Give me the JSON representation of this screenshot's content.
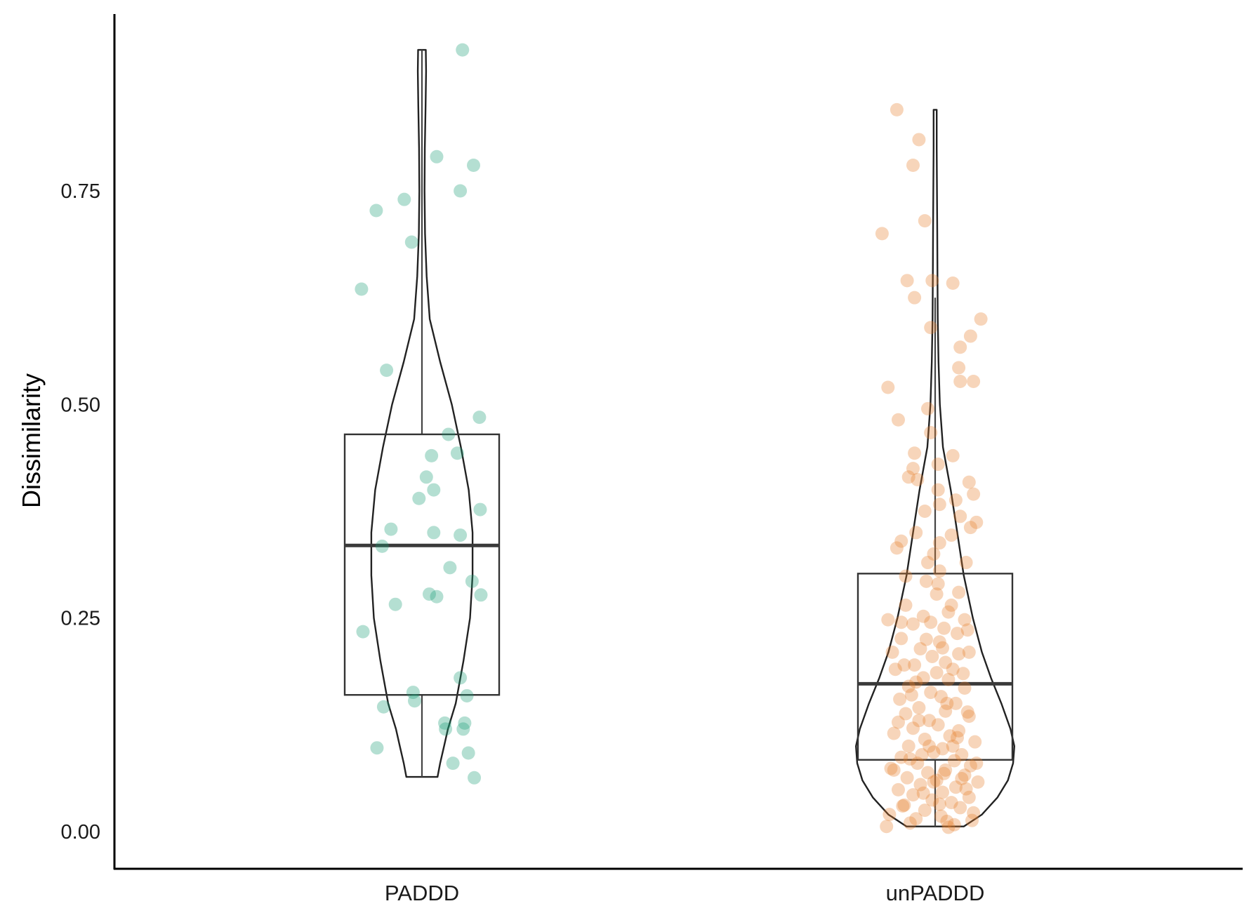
{
  "chart_data": {
    "type": "violin-box-jitter",
    "title": "",
    "xlabel": "",
    "ylabel": "Dissimilarity",
    "ylim": [
      -0.04,
      0.98
    ],
    "yticks": [
      0.0,
      0.25,
      0.5,
      0.75
    ],
    "ytick_labels": [
      "0.00",
      "0.25",
      "0.50",
      "0.75"
    ],
    "grid": false,
    "legend": "none",
    "categories": [
      "PADDD",
      "unPADDD"
    ],
    "groups": [
      {
        "name": "PADDD",
        "color": "#1b9e77",
        "box": {
          "min": 0.064,
          "q1": 0.16,
          "median": 0.335,
          "q3": 0.465,
          "max": 0.915
        },
        "violin": [
          [
            0.064,
            0.06
          ],
          [
            0.08,
            0.07
          ],
          [
            0.1,
            0.085
          ],
          [
            0.12,
            0.1
          ],
          [
            0.15,
            0.13
          ],
          [
            0.2,
            0.16
          ],
          [
            0.25,
            0.185
          ],
          [
            0.3,
            0.195
          ],
          [
            0.35,
            0.195
          ],
          [
            0.4,
            0.18
          ],
          [
            0.45,
            0.15
          ],
          [
            0.5,
            0.115
          ],
          [
            0.55,
            0.07
          ],
          [
            0.6,
            0.03
          ],
          [
            0.65,
            0.018
          ],
          [
            0.7,
            0.012
          ],
          [
            0.75,
            0.01
          ],
          [
            0.8,
            0.011
          ],
          [
            0.85,
            0.014
          ],
          [
            0.89,
            0.016
          ],
          [
            0.915,
            0.015
          ]
        ],
        "points": [
          {
            "x": 0.55,
            "y": 0.915
          },
          {
            "x": 0.2,
            "y": 0.79
          },
          {
            "x": 0.7,
            "y": 0.78
          },
          {
            "x": 0.52,
            "y": 0.75
          },
          {
            "x": -0.24,
            "y": 0.74
          },
          {
            "x": -0.62,
            "y": 0.727
          },
          {
            "x": -0.14,
            "y": 0.69
          },
          {
            "x": -0.82,
            "y": 0.635
          },
          {
            "x": -0.48,
            "y": 0.54
          },
          {
            "x": 0.78,
            "y": 0.485
          },
          {
            "x": 0.36,
            "y": 0.465
          },
          {
            "x": 0.48,
            "y": 0.443
          },
          {
            "x": 0.13,
            "y": 0.44
          },
          {
            "x": 0.06,
            "y": 0.415
          },
          {
            "x": 0.16,
            "y": 0.4
          },
          {
            "x": -0.04,
            "y": 0.39
          },
          {
            "x": 0.79,
            "y": 0.377
          },
          {
            "x": -0.42,
            "y": 0.354
          },
          {
            "x": 0.16,
            "y": 0.35
          },
          {
            "x": 0.52,
            "y": 0.347
          },
          {
            "x": -0.54,
            "y": 0.334
          },
          {
            "x": 0.38,
            "y": 0.309
          },
          {
            "x": 0.68,
            "y": 0.293
          },
          {
            "x": 0.1,
            "y": 0.278
          },
          {
            "x": 0.2,
            "y": 0.275
          },
          {
            "x": 0.8,
            "y": 0.277
          },
          {
            "x": -0.36,
            "y": 0.266
          },
          {
            "x": -0.8,
            "y": 0.234
          },
          {
            "x": 0.52,
            "y": 0.18
          },
          {
            "x": -0.12,
            "y": 0.163
          },
          {
            "x": 0.61,
            "y": 0.159
          },
          {
            "x": -0.1,
            "y": 0.153
          },
          {
            "x": -0.52,
            "y": 0.146
          },
          {
            "x": 0.31,
            "y": 0.127
          },
          {
            "x": 0.58,
            "y": 0.127
          },
          {
            "x": 0.32,
            "y": 0.12
          },
          {
            "x": 0.56,
            "y": 0.12
          },
          {
            "x": -0.61,
            "y": 0.098
          },
          {
            "x": 0.63,
            "y": 0.092
          },
          {
            "x": 0.42,
            "y": 0.08
          },
          {
            "x": 0.71,
            "y": 0.063
          }
        ]
      },
      {
        "name": "unPADDD",
        "color": "#e6802f",
        "box": {
          "min": 0.006,
          "q1": 0.084,
          "median": 0.173,
          "q3": 0.302,
          "max": 0.625
        },
        "violin": [
          [
            0.006,
            0.11
          ],
          [
            0.02,
            0.18
          ],
          [
            0.04,
            0.24
          ],
          [
            0.06,
            0.28
          ],
          [
            0.08,
            0.3
          ],
          [
            0.1,
            0.305
          ],
          [
            0.12,
            0.29
          ],
          [
            0.15,
            0.255
          ],
          [
            0.18,
            0.215
          ],
          [
            0.21,
            0.18
          ],
          [
            0.25,
            0.145
          ],
          [
            0.3,
            0.11
          ],
          [
            0.35,
            0.085
          ],
          [
            0.4,
            0.06
          ],
          [
            0.45,
            0.03
          ],
          [
            0.5,
            0.018
          ],
          [
            0.55,
            0.013
          ],
          [
            0.6,
            0.01
          ],
          [
            0.65,
            0.009
          ],
          [
            0.7,
            0.008
          ],
          [
            0.75,
            0.007
          ],
          [
            0.8,
            0.006
          ],
          [
            0.845,
            0.006
          ]
        ],
        "points": [
          {
            "x": -0.52,
            "y": 0.845
          },
          {
            "x": -0.22,
            "y": 0.81
          },
          {
            "x": -0.3,
            "y": 0.78
          },
          {
            "x": -0.14,
            "y": 0.715
          },
          {
            "x": -0.72,
            "y": 0.7
          },
          {
            "x": -0.38,
            "y": 0.645
          },
          {
            "x": -0.04,
            "y": 0.645
          },
          {
            "x": 0.24,
            "y": 0.642
          },
          {
            "x": -0.28,
            "y": 0.625
          },
          {
            "x": 0.62,
            "y": 0.6
          },
          {
            "x": -0.06,
            "y": 0.59
          },
          {
            "x": 0.48,
            "y": 0.58
          },
          {
            "x": 0.34,
            "y": 0.567
          },
          {
            "x": 0.32,
            "y": 0.543
          },
          {
            "x": 0.34,
            "y": 0.527
          },
          {
            "x": 0.52,
            "y": 0.527
          },
          {
            "x": -0.64,
            "y": 0.52
          },
          {
            "x": -0.1,
            "y": 0.495
          },
          {
            "x": -0.5,
            "y": 0.482
          },
          {
            "x": -0.06,
            "y": 0.467
          },
          {
            "x": -0.28,
            "y": 0.443
          },
          {
            "x": 0.24,
            "y": 0.44
          },
          {
            "x": -0.3,
            "y": 0.425
          },
          {
            "x": 0.04,
            "y": 0.43
          },
          {
            "x": -0.24,
            "y": 0.412
          },
          {
            "x": -0.36,
            "y": 0.415
          },
          {
            "x": 0.46,
            "y": 0.409
          },
          {
            "x": 0.04,
            "y": 0.4
          },
          {
            "x": 0.52,
            "y": 0.395
          },
          {
            "x": 0.28,
            "y": 0.388
          },
          {
            "x": 0.06,
            "y": 0.383
          },
          {
            "x": -0.14,
            "y": 0.375
          },
          {
            "x": 0.34,
            "y": 0.369
          },
          {
            "x": 0.48,
            "y": 0.356
          },
          {
            "x": -0.26,
            "y": 0.35
          },
          {
            "x": 0.22,
            "y": 0.347
          },
          {
            "x": -0.46,
            "y": 0.34
          },
          {
            "x": 0.56,
            "y": 0.362
          },
          {
            "x": -0.52,
            "y": 0.332
          },
          {
            "x": 0.06,
            "y": 0.338
          },
          {
            "x": -0.02,
            "y": 0.325
          },
          {
            "x": 0.42,
            "y": 0.315
          },
          {
            "x": 0.06,
            "y": 0.305
          },
          {
            "x": -0.4,
            "y": 0.299
          },
          {
            "x": -0.12,
            "y": 0.293
          },
          {
            "x": 0.32,
            "y": 0.28
          },
          {
            "x": 0.02,
            "y": 0.278
          },
          {
            "x": -0.4,
            "y": 0.265
          },
          {
            "x": 0.18,
            "y": 0.257
          },
          {
            "x": -0.16,
            "y": 0.252
          },
          {
            "x": 0.4,
            "y": 0.248
          },
          {
            "x": -0.64,
            "y": 0.248
          },
          {
            "x": -0.3,
            "y": 0.243
          },
          {
            "x": 0.12,
            "y": 0.238
          },
          {
            "x": 0.44,
            "y": 0.236
          },
          {
            "x": -0.46,
            "y": 0.226
          },
          {
            "x": 0.06,
            "y": 0.222
          },
          {
            "x": -0.2,
            "y": 0.214
          },
          {
            "x": 0.32,
            "y": 0.208
          },
          {
            "x": -0.04,
            "y": 0.205
          },
          {
            "x": 0.14,
            "y": 0.198
          },
          {
            "x": -0.28,
            "y": 0.195
          },
          {
            "x": 0.24,
            "y": 0.19
          },
          {
            "x": -0.54,
            "y": 0.19
          },
          {
            "x": 0.02,
            "y": 0.186
          },
          {
            "x": -0.16,
            "y": 0.18
          },
          {
            "x": 0.18,
            "y": 0.178
          },
          {
            "x": -0.36,
            "y": 0.17
          },
          {
            "x": 0.4,
            "y": 0.168
          },
          {
            "x": -0.06,
            "y": 0.163
          },
          {
            "x": 0.08,
            "y": 0.158
          },
          {
            "x": -0.48,
            "y": 0.155
          },
          {
            "x": 0.28,
            "y": 0.15
          },
          {
            "x": -0.22,
            "y": 0.145
          },
          {
            "x": 0.14,
            "y": 0.141
          },
          {
            "x": -0.4,
            "y": 0.138
          },
          {
            "x": 0.46,
            "y": 0.135
          },
          {
            "x": -0.08,
            "y": 0.13
          },
          {
            "x": 0.04,
            "y": 0.125
          },
          {
            "x": -0.3,
            "y": 0.121
          },
          {
            "x": 0.32,
            "y": 0.118
          },
          {
            "x": -0.56,
            "y": 0.115
          },
          {
            "x": 0.2,
            "y": 0.112
          },
          {
            "x": -0.14,
            "y": 0.108
          },
          {
            "x": 0.54,
            "y": 0.105
          },
          {
            "x": -0.36,
            "y": 0.1
          },
          {
            "x": 0.1,
            "y": 0.097
          },
          {
            "x": -0.02,
            "y": 0.093
          },
          {
            "x": 0.36,
            "y": 0.09
          },
          {
            "x": -0.46,
            "y": 0.087
          },
          {
            "x": 0.26,
            "y": 0.083
          },
          {
            "x": -0.24,
            "y": 0.08
          },
          {
            "x": 0.48,
            "y": 0.077
          },
          {
            "x": -0.6,
            "y": 0.074
          },
          {
            "x": 0.14,
            "y": 0.072
          },
          {
            "x": -0.1,
            "y": 0.069
          },
          {
            "x": 0.4,
            "y": 0.066
          },
          {
            "x": -0.38,
            "y": 0.063
          },
          {
            "x": 0.02,
            "y": 0.06
          },
          {
            "x": 0.58,
            "y": 0.058
          },
          {
            "x": -0.2,
            "y": 0.055
          },
          {
            "x": 0.28,
            "y": 0.052
          },
          {
            "x": -0.5,
            "y": 0.049
          },
          {
            "x": 0.1,
            "y": 0.046
          },
          {
            "x": -0.3,
            "y": 0.043
          },
          {
            "x": 0.46,
            "y": 0.04
          },
          {
            "x": -0.04,
            "y": 0.037
          },
          {
            "x": 0.22,
            "y": 0.034
          },
          {
            "x": -0.42,
            "y": 0.031
          },
          {
            "x": 0.34,
            "y": 0.028
          },
          {
            "x": -0.14,
            "y": 0.025
          },
          {
            "x": 0.52,
            "y": 0.022
          },
          {
            "x": -0.62,
            "y": 0.02
          },
          {
            "x": 0.08,
            "y": 0.018
          },
          {
            "x": -0.26,
            "y": 0.015
          },
          {
            "x": 0.16,
            "y": 0.012
          },
          {
            "x": -0.34,
            "y": 0.01
          },
          {
            "x": 0.26,
            "y": 0.008
          },
          {
            "x": -0.66,
            "y": 0.006
          },
          {
            "x": 0.18,
            "y": 0.005
          },
          {
            "x": -0.56,
            "y": 0.072
          },
          {
            "x": 0.42,
            "y": 0.05
          },
          {
            "x": -0.18,
            "y": 0.09
          },
          {
            "x": 0.3,
            "y": 0.11
          },
          {
            "x": -0.44,
            "y": 0.03
          },
          {
            "x": 0.5,
            "y": 0.013
          },
          {
            "x": -0.08,
            "y": 0.1
          },
          {
            "x": 0.12,
            "y": 0.068
          },
          {
            "x": -0.32,
            "y": 0.16
          },
          {
            "x": 0.38,
            "y": 0.185
          },
          {
            "x": -0.12,
            "y": 0.225
          },
          {
            "x": 0.22,
            "y": 0.265
          },
          {
            "x": -0.58,
            "y": 0.21
          },
          {
            "x": 0.44,
            "y": 0.14
          },
          {
            "x": -0.5,
            "y": 0.128
          },
          {
            "x": 0.06,
            "y": 0.032
          },
          {
            "x": -0.16,
            "y": 0.045
          },
          {
            "x": 0.36,
            "y": 0.062
          },
          {
            "x": -0.26,
            "y": 0.175
          },
          {
            "x": 0.1,
            "y": 0.215
          },
          {
            "x": -0.42,
            "y": 0.195
          },
          {
            "x": 0.3,
            "y": 0.232
          },
          {
            "x": -0.06,
            "y": 0.245
          },
          {
            "x": 0.16,
            "y": 0.15
          },
          {
            "x": -0.34,
            "y": 0.085
          },
          {
            "x": 0.56,
            "y": 0.08
          },
          {
            "x": -0.02,
            "y": 0.058
          },
          {
            "x": 0.24,
            "y": 0.1
          },
          {
            "x": -0.22,
            "y": 0.13
          },
          {
            "x": 0.46,
            "y": 0.21
          },
          {
            "x": -0.46,
            "y": 0.245
          },
          {
            "x": 0.04,
            "y": 0.29
          },
          {
            "x": -0.1,
            "y": 0.315
          }
        ]
      }
    ]
  }
}
